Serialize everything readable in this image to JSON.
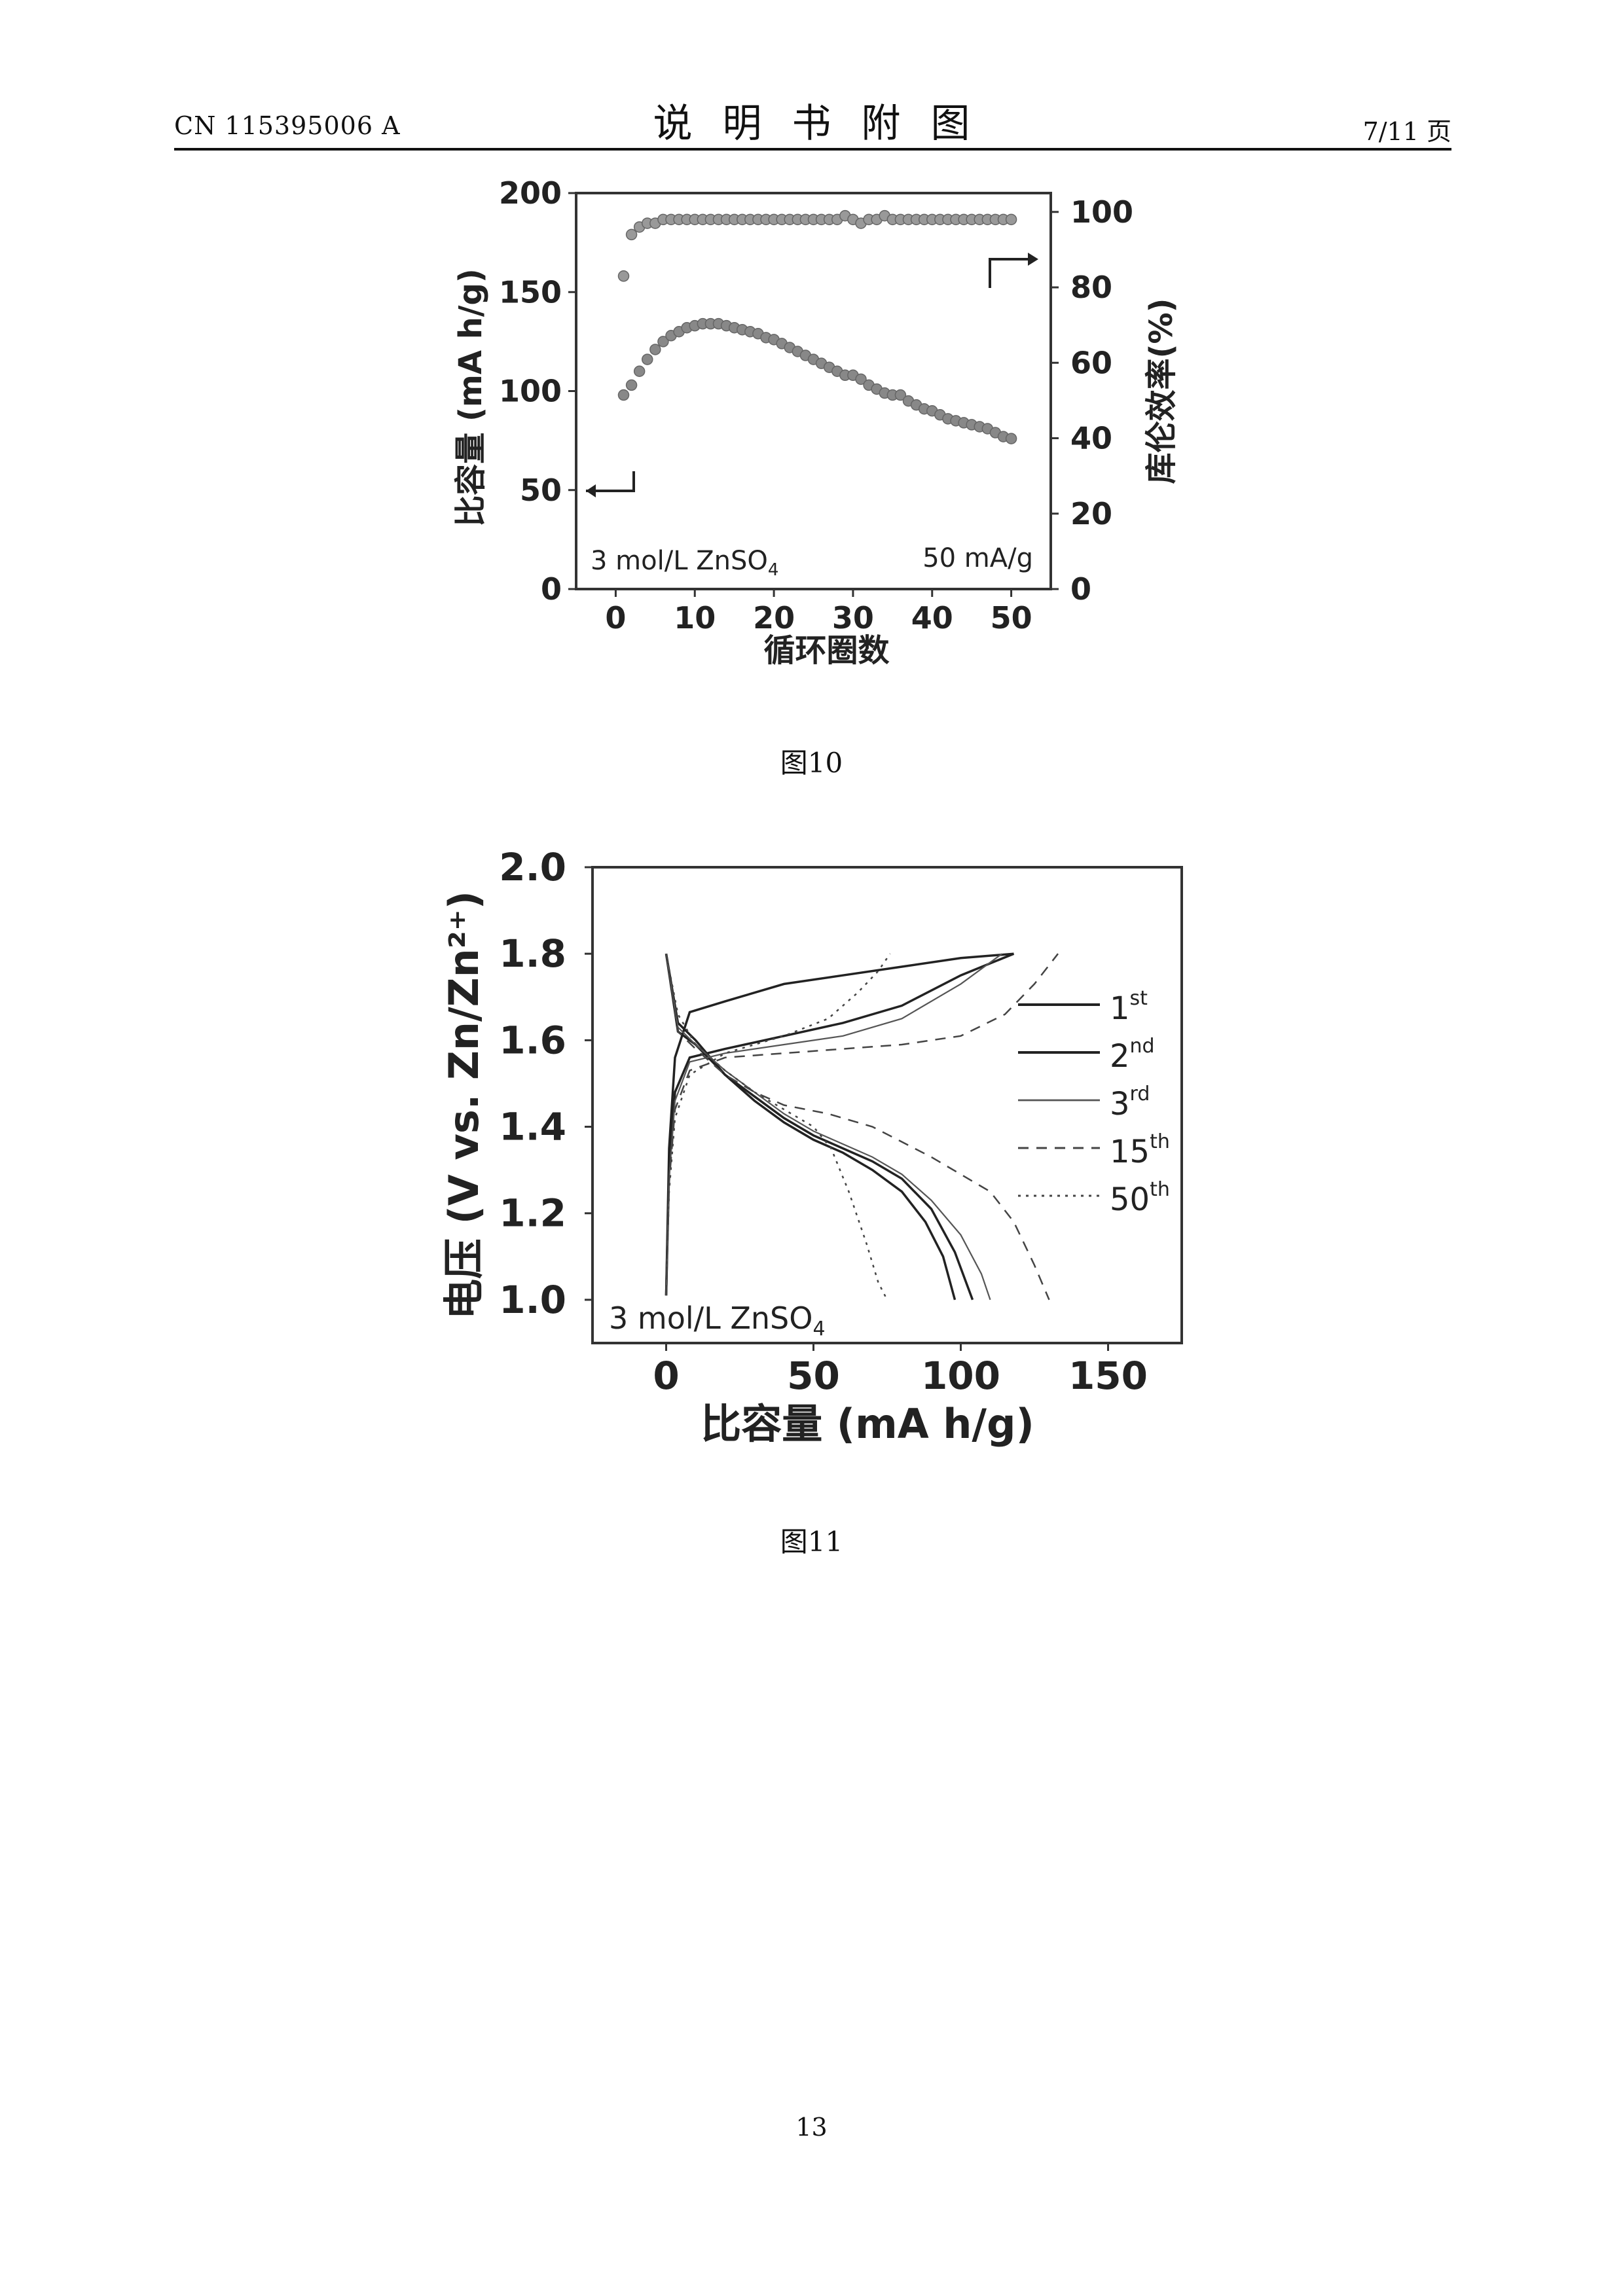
{
  "header": {
    "left": "CN 115395006 A",
    "center": "说明书附图",
    "right": "7/11 页"
  },
  "figures": [
    {
      "caption": "图10"
    },
    {
      "caption": "图11"
    }
  ],
  "page_number": "13",
  "chart_data": [
    {
      "type": "scatter",
      "xlabel": "循环圈数",
      "ylabel": "比容量 (mA h/g)",
      "ylabel_right": "库伦效率(%)",
      "xlim": [
        -5,
        55
      ],
      "ylim": [
        0,
        200
      ],
      "ylim_right": [
        0,
        105
      ],
      "xticks": [
        0,
        10,
        20,
        30,
        40,
        50
      ],
      "yticks": [
        0,
        50,
        100,
        150,
        200
      ],
      "yticks_right": [
        0,
        20,
        40,
        60,
        80,
        100
      ],
      "annotations": [
        "3 mol/L ZnSO4",
        "50 mA/g"
      ],
      "series": [
        {
          "axis": "left",
          "x": [
            1,
            2,
            3,
            4,
            5,
            6,
            7,
            8,
            9,
            10,
            11,
            12,
            13,
            14,
            15,
            16,
            17,
            18,
            19,
            20,
            21,
            22,
            23,
            24,
            25,
            26,
            27,
            28,
            29,
            30,
            31,
            32,
            33,
            34,
            35,
            36,
            37,
            38,
            39,
            40,
            41,
            42,
            43,
            44,
            45,
            46,
            47,
            48,
            49,
            50
          ],
          "values": [
            98,
            103,
            110,
            116,
            121,
            125,
            128,
            130,
            132,
            133,
            134,
            134,
            134,
            133,
            132,
            131,
            130,
            129,
            127,
            126,
            124,
            122,
            120,
            118,
            116,
            114,
            112,
            110,
            108,
            108,
            106,
            103,
            101,
            99,
            98,
            98,
            95,
            93,
            91,
            90,
            88,
            86,
            85,
            84,
            83,
            82,
            81,
            79,
            77,
            76
          ]
        },
        {
          "axis": "right",
          "x": [
            1,
            2,
            3,
            4,
            5,
            6,
            7,
            8,
            9,
            10,
            11,
            12,
            13,
            14,
            15,
            16,
            17,
            18,
            19,
            20,
            21,
            22,
            23,
            24,
            25,
            26,
            27,
            28,
            29,
            30,
            31,
            32,
            33,
            34,
            35,
            36,
            37,
            38,
            39,
            40,
            41,
            42,
            43,
            44,
            45,
            46,
            47,
            48,
            49,
            50
          ],
          "values": [
            83,
            94,
            96,
            97,
            97,
            98,
            98,
            98,
            98,
            98,
            98,
            98,
            98,
            98,
            98,
            98,
            98,
            98,
            98,
            98,
            98,
            98,
            98,
            98,
            98,
            98,
            98,
            98,
            99,
            98,
            97,
            98,
            98,
            99,
            98,
            98,
            98,
            98,
            98,
            98,
            98,
            98,
            98,
            98,
            98,
            98,
            98,
            98,
            98,
            98
          ]
        }
      ]
    },
    {
      "type": "line",
      "xlabel": "比容量 (mA h/g)",
      "ylabel": "电压 (V vs. Zn/Zn²⁺)",
      "xlim": [
        -25,
        175
      ],
      "ylim": [
        0.9,
        2.0
      ],
      "xticks": [
        0,
        50,
        100,
        150
      ],
      "yticks": [
        1.0,
        1.2,
        1.4,
        1.6,
        1.8,
        2.0
      ],
      "annotations": [
        "3 mol/L ZnSO4"
      ],
      "series": [
        {
          "name": "1st",
          "style": "solid",
          "discharge": [
            [
              0,
              1.8
            ],
            [
              4,
              1.64
            ],
            [
              10,
              1.6
            ],
            [
              20,
              1.52
            ],
            [
              30,
              1.46
            ],
            [
              40,
              1.41
            ],
            [
              50,
              1.37
            ],
            [
              60,
              1.34
            ],
            [
              70,
              1.3
            ],
            [
              80,
              1.25
            ],
            [
              88,
              1.18
            ],
            [
              94,
              1.1
            ],
            [
              98,
              1.0
            ]
          ],
          "charge": [
            [
              0,
              1.01
            ],
            [
              1,
              1.35
            ],
            [
              3,
              1.56
            ],
            [
              8,
              1.665
            ],
            [
              20,
              1.69
            ],
            [
              40,
              1.73
            ],
            [
              60,
              1.75
            ],
            [
              80,
              1.77
            ],
            [
              100,
              1.79
            ],
            [
              118,
              1.8
            ]
          ]
        },
        {
          "name": "2nd",
          "style": "solid",
          "discharge": [
            [
              0,
              1.8
            ],
            [
              4,
              1.62
            ],
            [
              10,
              1.59
            ],
            [
              20,
              1.52
            ],
            [
              30,
              1.47
            ],
            [
              40,
              1.42
            ],
            [
              50,
              1.38
            ],
            [
              60,
              1.35
            ],
            [
              70,
              1.32
            ],
            [
              80,
              1.28
            ],
            [
              90,
              1.21
            ],
            [
              98,
              1.11
            ],
            [
              104,
              1.0
            ]
          ],
          "charge": [
            [
              0,
              1.01
            ],
            [
              1,
              1.3
            ],
            [
              3,
              1.48
            ],
            [
              8,
              1.56
            ],
            [
              20,
              1.58
            ],
            [
              40,
              1.61
            ],
            [
              60,
              1.64
            ],
            [
              80,
              1.68
            ],
            [
              100,
              1.75
            ],
            [
              118,
              1.8
            ]
          ]
        },
        {
          "name": "3rd",
          "style": "thin",
          "discharge": [
            [
              0,
              1.8
            ],
            [
              4,
              1.63
            ],
            [
              10,
              1.59
            ],
            [
              20,
              1.53
            ],
            [
              30,
              1.48
            ],
            [
              40,
              1.43
            ],
            [
              50,
              1.39
            ],
            [
              60,
              1.36
            ],
            [
              70,
              1.33
            ],
            [
              80,
              1.29
            ],
            [
              90,
              1.23
            ],
            [
              100,
              1.15
            ],
            [
              107,
              1.06
            ],
            [
              110,
              1.0
            ]
          ],
          "charge": [
            [
              0,
              1.01
            ],
            [
              1,
              1.28
            ],
            [
              3,
              1.46
            ],
            [
              8,
              1.55
            ],
            [
              20,
              1.57
            ],
            [
              40,
              1.59
            ],
            [
              60,
              1.61
            ],
            [
              80,
              1.65
            ],
            [
              100,
              1.73
            ],
            [
              114,
              1.8
            ]
          ]
        },
        {
          "name": "15th",
          "style": "dashed",
          "discharge": [
            [
              0,
              1.8
            ],
            [
              4,
              1.62
            ],
            [
              10,
              1.58
            ],
            [
              20,
              1.52
            ],
            [
              30,
              1.48
            ],
            [
              40,
              1.45
            ],
            [
              55,
              1.43
            ],
            [
              70,
              1.4
            ],
            [
              90,
              1.33
            ],
            [
              110,
              1.25
            ],
            [
              118,
              1.18
            ],
            [
              125,
              1.08
            ],
            [
              130,
              1.0
            ]
          ],
          "charge": [
            [
              0,
              1.01
            ],
            [
              1,
              1.27
            ],
            [
              3,
              1.44
            ],
            [
              8,
              1.53
            ],
            [
              20,
              1.56
            ],
            [
              40,
              1.57
            ],
            [
              60,
              1.58
            ],
            [
              80,
              1.59
            ],
            [
              100,
              1.61
            ],
            [
              115,
              1.66
            ],
            [
              125,
              1.73
            ],
            [
              133,
              1.8
            ]
          ]
        },
        {
          "name": "50th",
          "style": "dotted",
          "discharge": [
            [
              0,
              1.8
            ],
            [
              4,
              1.66
            ],
            [
              10,
              1.59
            ],
            [
              20,
              1.53
            ],
            [
              30,
              1.48
            ],
            [
              40,
              1.44
            ],
            [
              50,
              1.4
            ],
            [
              56,
              1.35
            ],
            [
              62,
              1.25
            ],
            [
              68,
              1.13
            ],
            [
              72,
              1.04
            ],
            [
              75,
              1.0
            ]
          ],
          "charge": [
            [
              0,
              1.01
            ],
            [
              1,
              1.25
            ],
            [
              3,
              1.42
            ],
            [
              8,
              1.52
            ],
            [
              20,
              1.57
            ],
            [
              40,
              1.61
            ],
            [
              55,
              1.65
            ],
            [
              65,
              1.71
            ],
            [
              72,
              1.76
            ],
            [
              76,
              1.8
            ]
          ]
        }
      ]
    }
  ]
}
